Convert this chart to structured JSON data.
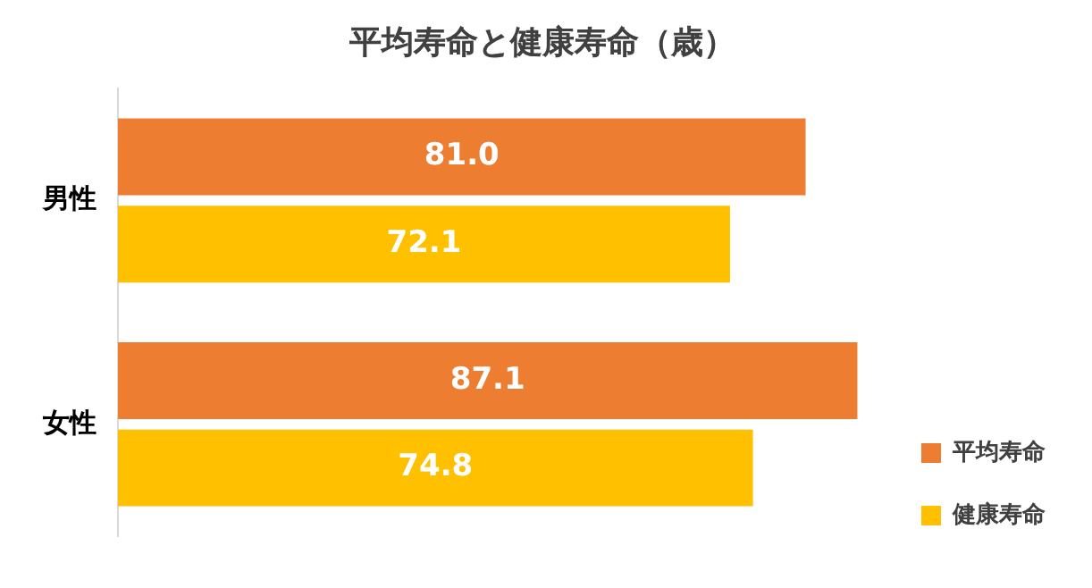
{
  "chart_data": {
    "type": "bar",
    "orientation": "horizontal",
    "title": "平均寿命と健康寿命（歳）",
    "categories": [
      "男性",
      "女性"
    ],
    "series": [
      {
        "name": "平均寿命",
        "color": "#ed7d31",
        "values": [
          81.0,
          87.1
        ],
        "value_labels": [
          "81.0",
          "87.1"
        ]
      },
      {
        "name": "健康寿命",
        "color": "#ffc000",
        "values": [
          72.1,
          74.8
        ],
        "value_labels": [
          "72.1",
          "74.8"
        ]
      }
    ],
    "legend": "bottom right",
    "tick_labels": "y"
  }
}
